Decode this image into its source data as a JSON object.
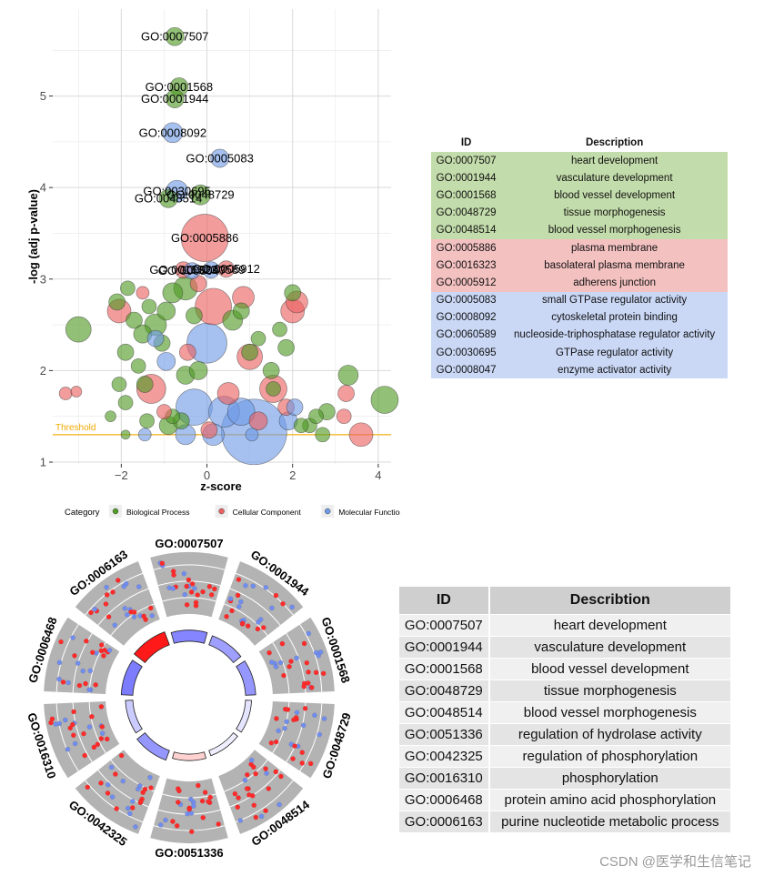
{
  "chart_data": [
    {
      "type": "scatter",
      "title": "",
      "xlabel": "z-score",
      "ylabel": "-log (adj p-value)",
      "xlim": [
        -3.6,
        4.3
      ],
      "ylim": [
        0.98,
        5.95
      ],
      "xticks": [
        -2,
        0,
        2,
        4
      ],
      "yticks": [
        1,
        2,
        3,
        4,
        5
      ],
      "grid": true,
      "threshold": {
        "label": "Threshold",
        "value": 1.3,
        "color": "#f5c24a"
      },
      "legend": {
        "title": "Category",
        "position": "bottom",
        "entries": [
          {
            "label": "Biological Process",
            "color": "#4f9a23"
          },
          {
            "label": "Cellular Component",
            "color": "#ea6060"
          },
          {
            "label": "Molecular Function",
            "color": "#6f9be6"
          }
        ]
      },
      "labeled_points": [
        {
          "id": "GO:0007507",
          "x": -0.75,
          "y": 5.65,
          "size": 10,
          "category": "Biological Process"
        },
        {
          "id": "GO:0001568",
          "x": -0.65,
          "y": 5.1,
          "size": 10,
          "category": "Biological Process"
        },
        {
          "id": "GO:0001944",
          "x": -0.75,
          "y": 4.97,
          "size": 10,
          "category": "Biological Process"
        },
        {
          "id": "GO:0008092",
          "x": -0.8,
          "y": 4.6,
          "size": 11,
          "category": "Molecular Function"
        },
        {
          "id": "GO:0005083",
          "x": 0.3,
          "y": 4.32,
          "size": 10,
          "category": "Molecular Function"
        },
        {
          "id": "GO:0030695",
          "x": -0.7,
          "y": 3.96,
          "size": 12,
          "category": "Molecular Function"
        },
        {
          "id": "GO:0048729",
          "x": -0.15,
          "y": 3.92,
          "size": 11,
          "category": "Biological Process"
        },
        {
          "id": "GO:0048514",
          "x": -0.9,
          "y": 3.88,
          "size": 10,
          "category": "Biological Process"
        },
        {
          "id": "GO:0005886",
          "x": -0.05,
          "y": 3.45,
          "size": 26,
          "category": "Cellular Component"
        },
        {
          "id": "GO:0016323",
          "x": -0.55,
          "y": 3.1,
          "size": 9,
          "category": "Cellular Component"
        },
        {
          "id": "GO:0060589",
          "x": 0.1,
          "y": 3.1,
          "size": 9,
          "category": "Molecular Function"
        },
        {
          "id": "GO:0005912",
          "x": 0.45,
          "y": 3.11,
          "size": 9,
          "category": "Cellular Component"
        },
        {
          "id": "GO:0008047",
          "x": -0.35,
          "y": 3.09,
          "size": 9,
          "category": "Molecular Function"
        }
      ],
      "points": [
        {
          "x": -3.0,
          "y": 2.45,
          "size": 14,
          "category": "Biological Process"
        },
        {
          "x": -2.1,
          "y": 2.75,
          "size": 9,
          "category": "Biological Process"
        },
        {
          "x": -1.85,
          "y": 2.9,
          "size": 8,
          "category": "Biological Process"
        },
        {
          "x": -1.7,
          "y": 2.55,
          "size": 9,
          "category": "Biological Process"
        },
        {
          "x": -1.5,
          "y": 2.4,
          "size": 10,
          "category": "Biological Process"
        },
        {
          "x": -1.35,
          "y": 2.7,
          "size": 8,
          "category": "Biological Process"
        },
        {
          "x": -1.2,
          "y": 2.5,
          "size": 12,
          "category": "Biological Process"
        },
        {
          "x": -1.05,
          "y": 2.3,
          "size": 9,
          "category": "Biological Process"
        },
        {
          "x": -0.95,
          "y": 2.65,
          "size": 10,
          "category": "Biological Process"
        },
        {
          "x": -0.8,
          "y": 2.85,
          "size": 11,
          "category": "Biological Process"
        },
        {
          "x": -0.5,
          "y": 2.9,
          "size": 13,
          "category": "Biological Process"
        },
        {
          "x": -0.3,
          "y": 2.6,
          "size": 9,
          "category": "Biological Process"
        },
        {
          "x": -1.9,
          "y": 2.2,
          "size": 9,
          "category": "Biological Process"
        },
        {
          "x": -1.6,
          "y": 2.05,
          "size": 8,
          "category": "Biological Process"
        },
        {
          "x": -1.45,
          "y": 1.85,
          "size": 9,
          "category": "Biological Process"
        },
        {
          "x": -1.9,
          "y": 1.65,
          "size": 8,
          "category": "Biological Process"
        },
        {
          "x": -2.05,
          "y": 1.85,
          "size": 8,
          "category": "Biological Process"
        },
        {
          "x": -0.5,
          "y": 1.95,
          "size": 10,
          "category": "Biological Process"
        },
        {
          "x": -0.9,
          "y": 1.4,
          "size": 10,
          "category": "Biological Process"
        },
        {
          "x": -0.8,
          "y": 1.5,
          "size": 8,
          "category": "Biological Process"
        },
        {
          "x": -1.4,
          "y": 1.45,
          "size": 8,
          "category": "Biological Process"
        },
        {
          "x": -2.25,
          "y": 1.5,
          "size": 6,
          "category": "Biological Process"
        },
        {
          "x": -1.9,
          "y": 1.3,
          "size": 5,
          "category": "Biological Process"
        },
        {
          "x": -0.2,
          "y": 2.0,
          "size": 10,
          "category": "Biological Process"
        },
        {
          "x": 0.6,
          "y": 2.55,
          "size": 11,
          "category": "Biological Process"
        },
        {
          "x": 0.8,
          "y": 2.65,
          "size": 9,
          "category": "Biological Process"
        },
        {
          "x": 1.0,
          "y": 2.2,
          "size": 9,
          "category": "Biological Process"
        },
        {
          "x": 1.2,
          "y": 2.35,
          "size": 8,
          "category": "Biological Process"
        },
        {
          "x": 1.5,
          "y": 2.0,
          "size": 9,
          "category": "Biological Process"
        },
        {
          "x": 1.7,
          "y": 2.45,
          "size": 8,
          "category": "Biological Process"
        },
        {
          "x": 1.85,
          "y": 2.25,
          "size": 9,
          "category": "Biological Process"
        },
        {
          "x": 2.0,
          "y": 2.85,
          "size": 9,
          "category": "Biological Process"
        },
        {
          "x": 2.4,
          "y": 1.4,
          "size": 8,
          "category": "Biological Process"
        },
        {
          "x": 2.55,
          "y": 1.5,
          "size": 8,
          "category": "Biological Process"
        },
        {
          "x": 2.7,
          "y": 1.3,
          "size": 8,
          "category": "Biological Process"
        },
        {
          "x": 2.8,
          "y": 1.55,
          "size": 9,
          "category": "Biological Process"
        },
        {
          "x": 3.3,
          "y": 1.95,
          "size": 11,
          "category": "Biological Process"
        },
        {
          "x": 4.15,
          "y": 1.68,
          "size": 15,
          "category": "Biological Process"
        },
        {
          "x": 2.2,
          "y": 1.4,
          "size": 8,
          "category": "Biological Process"
        },
        {
          "x": -0.6,
          "y": 1.45,
          "size": 9,
          "category": "Biological Process"
        },
        {
          "x": 1.55,
          "y": 1.8,
          "size": 8,
          "category": "Biological Process"
        },
        {
          "x": -3.3,
          "y": 1.75,
          "size": 7,
          "category": "Cellular Component"
        },
        {
          "x": -3.05,
          "y": 1.77,
          "size": 6,
          "category": "Cellular Component"
        },
        {
          "x": -1.5,
          "y": 2.85,
          "size": 7,
          "category": "Cellular Component"
        },
        {
          "x": -2.05,
          "y": 2.65,
          "size": 13,
          "category": "Cellular Component"
        },
        {
          "x": -1.3,
          "y": 1.8,
          "size": 16,
          "category": "Cellular Component"
        },
        {
          "x": 0.15,
          "y": 2.7,
          "size": 20,
          "category": "Cellular Component"
        },
        {
          "x": 0.85,
          "y": 2.8,
          "size": 12,
          "category": "Cellular Component"
        },
        {
          "x": 1.0,
          "y": 2.15,
          "size": 14,
          "category": "Cellular Component"
        },
        {
          "x": 2.0,
          "y": 2.65,
          "size": 13,
          "category": "Cellular Component"
        },
        {
          "x": 2.1,
          "y": 2.75,
          "size": 12,
          "category": "Cellular Component"
        },
        {
          "x": 1.55,
          "y": 1.8,
          "size": 15,
          "category": "Cellular Component"
        },
        {
          "x": 0.5,
          "y": 1.75,
          "size": 12,
          "category": "Cellular Component"
        },
        {
          "x": 3.25,
          "y": 1.75,
          "size": 9,
          "category": "Cellular Component"
        },
        {
          "x": 3.2,
          "y": 1.5,
          "size": 8,
          "category": "Cellular Component"
        },
        {
          "x": 3.6,
          "y": 1.3,
          "size": 13,
          "category": "Cellular Component"
        },
        {
          "x": 1.85,
          "y": 1.6,
          "size": 9,
          "category": "Cellular Component"
        },
        {
          "x": -0.45,
          "y": 2.2,
          "size": 9,
          "category": "Cellular Component"
        },
        {
          "x": -0.2,
          "y": 2.95,
          "size": 9,
          "category": "Cellular Component"
        },
        {
          "x": 1.2,
          "y": 1.45,
          "size": 10,
          "category": "Cellular Component"
        },
        {
          "x": 0.05,
          "y": 1.35,
          "size": 9,
          "category": "Cellular Component"
        },
        {
          "x": -1.0,
          "y": 1.55,
          "size": 8,
          "category": "Cellular Component"
        },
        {
          "x": 0.0,
          "y": 2.3,
          "size": 22,
          "category": "Molecular Function"
        },
        {
          "x": -0.95,
          "y": 2.1,
          "size": 10,
          "category": "Molecular Function"
        },
        {
          "x": -1.2,
          "y": 2.35,
          "size": 9,
          "category": "Molecular Function"
        },
        {
          "x": -0.3,
          "y": 1.6,
          "size": 20,
          "category": "Molecular Function"
        },
        {
          "x": 0.4,
          "y": 1.55,
          "size": 17,
          "category": "Molecular Function"
        },
        {
          "x": 1.1,
          "y": 1.33,
          "size": 36,
          "category": "Molecular Function"
        },
        {
          "x": 1.05,
          "y": 1.3,
          "size": 7,
          "category": "Molecular Function"
        },
        {
          "x": -0.5,
          "y": 1.3,
          "size": 11,
          "category": "Molecular Function"
        },
        {
          "x": 0.15,
          "y": 1.3,
          "size": 12,
          "category": "Molecular Function"
        },
        {
          "x": 1.9,
          "y": 1.45,
          "size": 10,
          "category": "Molecular Function"
        },
        {
          "x": 2.05,
          "y": 1.6,
          "size": 9,
          "category": "Molecular Function"
        },
        {
          "x": -1.45,
          "y": 1.3,
          "size": 7,
          "category": "Molecular Function"
        },
        {
          "x": 0.8,
          "y": 1.55,
          "size": 15,
          "category": "Molecular Function"
        }
      ]
    },
    {
      "type": "circular",
      "terms": [
        {
          "id": "GO:0007507",
          "zscore": 0.7
        },
        {
          "id": "GO:0001944",
          "zscore": 0.55
        },
        {
          "id": "GO:0001568",
          "zscore": 0.6
        },
        {
          "id": "GO:0048729",
          "zscore": 0.15
        },
        {
          "id": "GO:0048514",
          "zscore": 0.1
        },
        {
          "id": "GO:0051336",
          "zscore": -0.2
        },
        {
          "id": "GO:0042325",
          "zscore": 0.6
        },
        {
          "id": "GO:0016310",
          "zscore": 0.3
        },
        {
          "id": "GO:0006468",
          "zscore": 0.75
        },
        {
          "id": "GO:0006163",
          "zscore": -1.0
        }
      ]
    }
  ],
  "table1": {
    "headers": [
      "ID",
      "Description"
    ],
    "rows": [
      {
        "id": "GO:0007507",
        "desc": "heart development",
        "category": "Biological Process"
      },
      {
        "id": "GO:0001944",
        "desc": "vasculature development",
        "category": "Biological Process"
      },
      {
        "id": "GO:0001568",
        "desc": "blood vessel development",
        "category": "Biological Process"
      },
      {
        "id": "GO:0048729",
        "desc": "tissue morphogenesis",
        "category": "Biological Process"
      },
      {
        "id": "GO:0048514",
        "desc": "blood vessel morphogenesis",
        "category": "Biological Process"
      },
      {
        "id": "GO:0005886",
        "desc": "plasma membrane",
        "category": "Cellular Component"
      },
      {
        "id": "GO:0016323",
        "desc": "basolateral plasma membrane",
        "category": "Cellular Component"
      },
      {
        "id": "GO:0005912",
        "desc": "adherens junction",
        "category": "Cellular Component"
      },
      {
        "id": "GO:0005083",
        "desc": "small GTPase regulator activity",
        "category": "Molecular Function"
      },
      {
        "id": "GO:0008092",
        "desc": "cytoskeletal protein binding",
        "category": "Molecular Function"
      },
      {
        "id": "GO:0060589",
        "desc": "nucleoside-triphosphatase regulator activity",
        "category": "Molecular Function"
      },
      {
        "id": "GO:0030695",
        "desc": "GTPase regulator activity",
        "category": "Molecular Function"
      },
      {
        "id": "GO:0008047",
        "desc": "enzyme activator activity",
        "category": "Molecular Function"
      }
    ],
    "row_colors": {
      "Biological Process": "#c3dcab",
      "Cellular Component": "#f4c1c1",
      "Molecular Function": "#cad8f6"
    }
  },
  "table2": {
    "headers": [
      "ID",
      "Describtion"
    ],
    "rows": [
      {
        "id": "GO:0007507",
        "desc": "heart development"
      },
      {
        "id": "GO:0001944",
        "desc": "vasculature development"
      },
      {
        "id": "GO:0001568",
        "desc": "blood vessel development"
      },
      {
        "id": "GO:0048729",
        "desc": "tissue morphogenesis"
      },
      {
        "id": "GO:0048514",
        "desc": "blood vessel morphogenesis"
      },
      {
        "id": "GO:0051336",
        "desc": "regulation of hydrolase activity"
      },
      {
        "id": "GO:0042325",
        "desc": "regulation of phosphorylation"
      },
      {
        "id": "GO:0016310",
        "desc": "phosphorylation"
      },
      {
        "id": "GO:0006468",
        "desc": "protein amino acid phosphorylation"
      },
      {
        "id": "GO:0006163",
        "desc": "purine nucleotide metabolic process"
      }
    ],
    "stripe_colors": [
      "#f0f0f0",
      "#e4e4e4"
    ]
  },
  "watermark": "CSDN @医学和生信笔记",
  "colors": {
    "grid": "#d9d9d9",
    "axis_text": "#4d4d4d",
    "up": "#ff2a2a",
    "down": "#6f8ef0"
  }
}
